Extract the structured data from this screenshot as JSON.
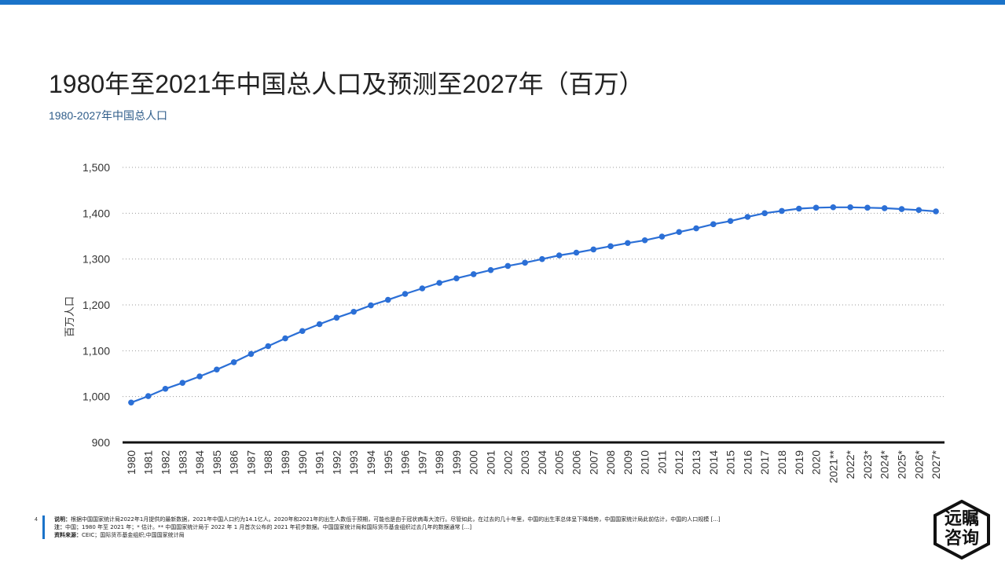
{
  "page": {
    "title": "1980年至2021年中国总人口及预测至2027年（百万）",
    "subtitle": "1980-2027年中国总人口",
    "page_number": "4"
  },
  "footer": {
    "note_label": "说明：",
    "note": "根据中国国家统计局2022年1月提供的最新数据，2021年中国人口约为14.1亿人。2020年和2021年的出生人数低于预期，可能也是由于冠状病毒大流行。尽管如此，在过去的几十年里，中国的出生率总体呈下降趋势，中国国家统计局此前估计，中国的人口规模 [...]",
    "remark_label": "注：",
    "remark": "中国；1980 年至 2021 年；* 估计。** 中国国家统计局于 2022 年 1 月首次公布的 2021 年初步数据。中国国家统计局和国际货币基金组织过去几年的数据通常 [...]",
    "source_label": "资料来源：",
    "source": "CEIC；国际货币基金组织;中国国家统计局"
  },
  "logo": {
    "line1": "远瞩",
    "line2": "咨询"
  },
  "colors": {
    "accent": "#1a73c9",
    "series": "#2b6fd6",
    "grid": "#999999"
  },
  "chart_data": {
    "type": "line",
    "ylabel": "百万人口",
    "xlabel": "",
    "ylim": [
      900,
      1500
    ],
    "yticks": [
      900,
      1000,
      1100,
      1200,
      1300,
      1400,
      1500
    ],
    "ytick_labels": [
      "900",
      "1,000",
      "1,100",
      "1,200",
      "1,300",
      "1,400",
      "1,500"
    ],
    "grid": "horizontal dotted",
    "categories": [
      "1980",
      "1981",
      "1982",
      "1983",
      "1984",
      "1985",
      "1986",
      "1987",
      "1988",
      "1989",
      "1990",
      "1991",
      "1992",
      "1993",
      "1994",
      "1995",
      "1996",
      "1997",
      "1998",
      "1999",
      "2000",
      "2001",
      "2002",
      "2003",
      "2004",
      "2005",
      "2006",
      "2007",
      "2008",
      "2009",
      "2010",
      "2011",
      "2012",
      "2013",
      "2014",
      "2015",
      "2016",
      "2017",
      "2018",
      "2019",
      "2020",
      "2021**",
      "2022*",
      "2023*",
      "2024*",
      "2025*",
      "2026*",
      "2027*"
    ],
    "series": [
      {
        "values": [
          987,
          1001,
          1017,
          1030,
          1044,
          1059,
          1075,
          1093,
          1110,
          1127,
          1143,
          1158,
          1172,
          1185,
          1199,
          1211,
          1224,
          1236,
          1248,
          1258,
          1267,
          1276,
          1285,
          1292,
          1300,
          1308,
          1314,
          1321,
          1328,
          1335,
          1341,
          1349,
          1359,
          1367,
          1376,
          1383,
          1392,
          1400,
          1405,
          1410,
          1412,
          1413,
          1413,
          1412,
          1411,
          1409,
          1407,
          1404
        ]
      }
    ]
  }
}
